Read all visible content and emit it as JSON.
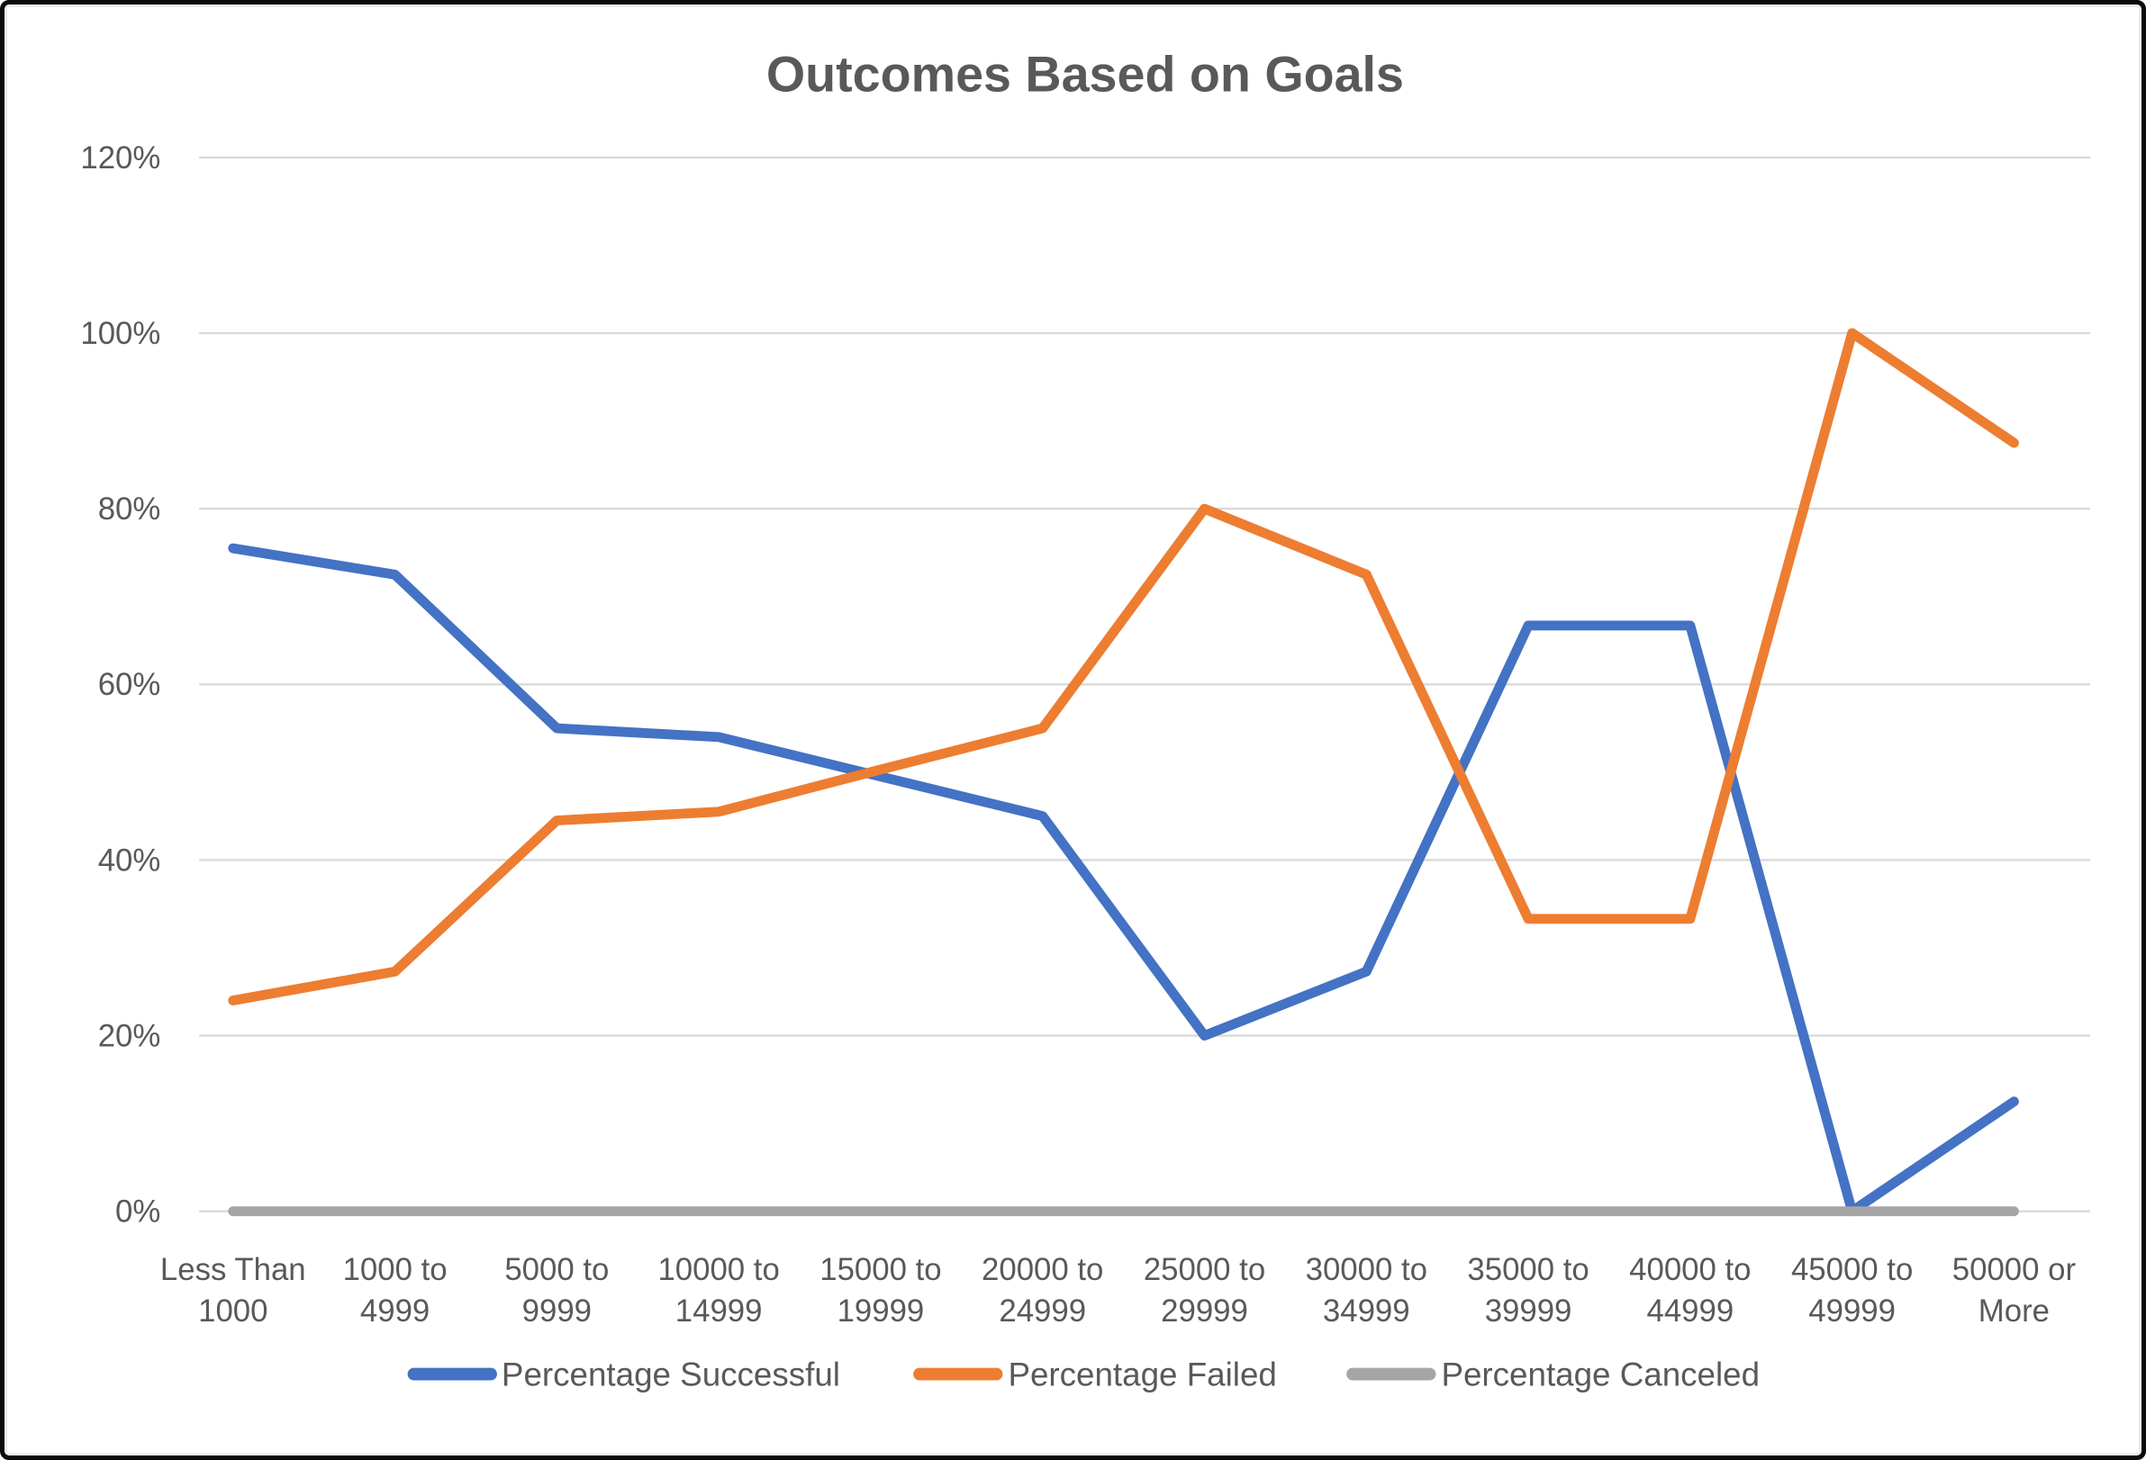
{
  "title": "Outcomes Based on Goals",
  "colors": {
    "gridline": "#D9D9D9",
    "axis_text": "#595959",
    "title_text": "#595959",
    "background": "#FFFFFF",
    "frame_border": "#000000",
    "successful": "#4472C4",
    "failed": "#ED7D31",
    "canceled": "#A5A5A5"
  },
  "chart_data": {
    "type": "line",
    "title": "Outcomes Based on Goals",
    "xlabel": "",
    "ylabel": "",
    "ylim": [
      0,
      120
    ],
    "y_tick_step": 20,
    "y_tick_suffix": "%",
    "grid": "horizontal",
    "legend_position": "bottom",
    "categories": [
      "Less Than 1000",
      "1000 to 4999",
      "5000 to 9999",
      "10000 to 14999",
      "15000 to 19999",
      "20000 to 24999",
      "25000 to 29999",
      "30000 to 34999",
      "35000 to 39999",
      "40000 to 44999",
      "45000 to 49999",
      "50000 or More"
    ],
    "series": [
      {
        "name": "Percentage Successful",
        "color": "#4472C4",
        "values": [
          75.5,
          72.5,
          55,
          54,
          49.5,
          45,
          20,
          27.3,
          66.7,
          66.7,
          0,
          12.5
        ]
      },
      {
        "name": "Percentage Failed",
        "color": "#ED7D31",
        "values": [
          24,
          27.3,
          44.5,
          45.5,
          50.3,
          55,
          80,
          72.5,
          33.3,
          33.3,
          100,
          87.5
        ]
      },
      {
        "name": "Percentage Canceled",
        "color": "#A5A5A5",
        "values": [
          0,
          0,
          0,
          0,
          0,
          0,
          0,
          0,
          0,
          0,
          0,
          0
        ]
      }
    ]
  }
}
